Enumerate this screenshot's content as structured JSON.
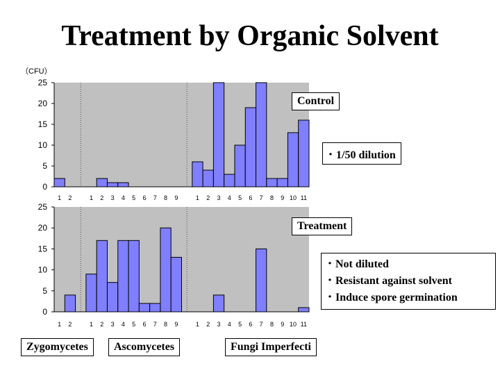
{
  "title": "Treatment by Organic Solvent",
  "unit_label": "（CFU）",
  "labels": {
    "control": "Control",
    "treatment": "Treatment",
    "dilution_note": "･ 1/50 dilution",
    "notes": [
      "･ Not diluted",
      "･ Resistant against solvent",
      "･ Induce spore germination"
    ],
    "groups": [
      "Zygomycetes",
      "Ascomycetes",
      "Fungi Imperfecti"
    ]
  },
  "colors": {
    "bar": "#7f7fff",
    "plot_bg": "#c0c0c0"
  },
  "chart_data": [
    {
      "type": "bar",
      "panel": "Control",
      "categories": [
        "1",
        "2",
        "1",
        "2",
        "3",
        "4",
        "5",
        "6",
        "7",
        "8",
        "9",
        "1",
        "2",
        "3",
        "4",
        "5",
        "6",
        "7",
        "8",
        "9",
        "10",
        "11"
      ],
      "groups": [
        {
          "name": "Zygomycetes",
          "count": 2
        },
        {
          "name": "Ascomycetes",
          "count": 9
        },
        {
          "name": "Fungi Imperfecti",
          "count": 11
        }
      ],
      "values": [
        2,
        0,
        0,
        2,
        1,
        1,
        0,
        0,
        0,
        0,
        0,
        6,
        4,
        25,
        3,
        10,
        19,
        25,
        2,
        2,
        13,
        16
      ],
      "ylim": [
        0,
        25
      ],
      "yticks": [
        0,
        5,
        10,
        15,
        20,
        25
      ]
    },
    {
      "type": "bar",
      "panel": "Treatment",
      "categories": [
        "1",
        "2",
        "1",
        "2",
        "3",
        "4",
        "5",
        "6",
        "7",
        "8",
        "9",
        "1",
        "2",
        "3",
        "4",
        "5",
        "6",
        "7",
        "8",
        "9",
        "10",
        "11"
      ],
      "groups": [
        {
          "name": "Zygomycetes",
          "count": 2
        },
        {
          "name": "Ascomycetes",
          "count": 9
        },
        {
          "name": "Fungi Imperfecti",
          "count": 11
        }
      ],
      "values": [
        0,
        4,
        9,
        17,
        7,
        17,
        17,
        2,
        2,
        20,
        13,
        0,
        0,
        4,
        0,
        0,
        0,
        15,
        0,
        0,
        0,
        1
      ],
      "ylim": [
        0,
        25
      ],
      "yticks": [
        0,
        5,
        10,
        15,
        20,
        25
      ]
    }
  ]
}
